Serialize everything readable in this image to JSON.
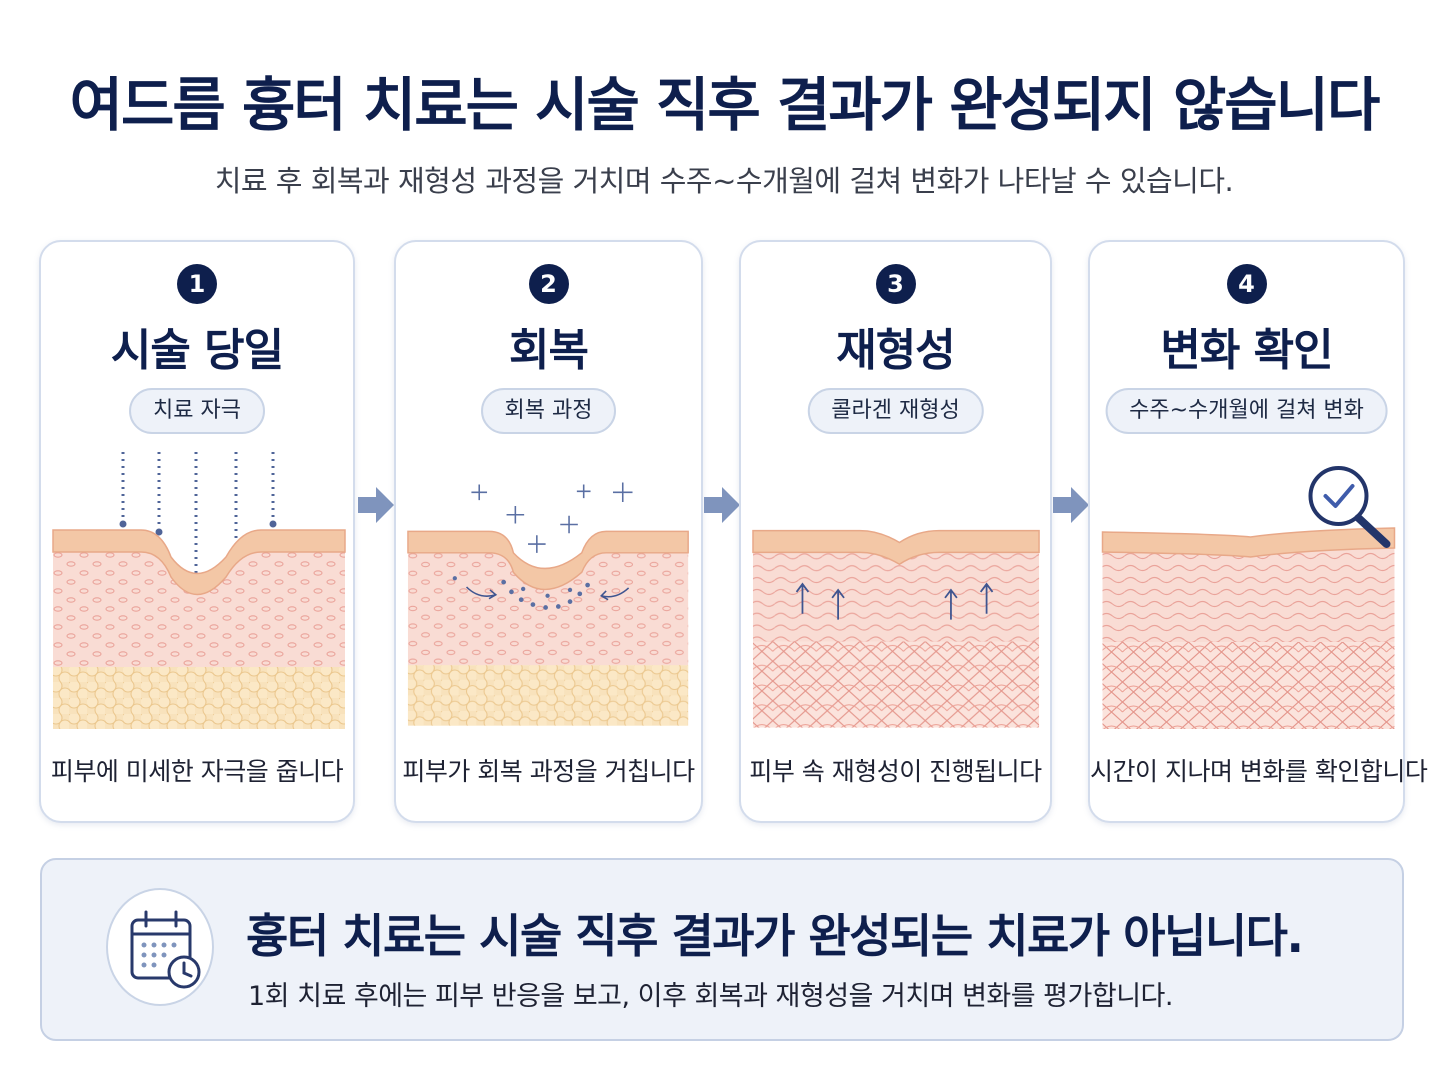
{
  "header": {
    "title": "여드름 흉터 치료는 시술 직후 결과가 완성되지 않습니다",
    "subtitle": "치료 후 회복과 재형성 과정을 거치며 수주~수개월에 걸쳐 변화가 나타날 수 있습니다."
  },
  "steps": [
    {
      "number": "1",
      "title": "시술 당일",
      "tag": "치료 자극",
      "description": "피부에 미세한 자극을 줍니다"
    },
    {
      "number": "2",
      "title": "회복",
      "tag": "회복 과정",
      "description": "피부가 회복 과정을 거칩니다"
    },
    {
      "number": "3",
      "title": "재형성",
      "tag": "콜라겐 재형성",
      "description": "피부 속 재형성이 진행됩니다"
    },
    {
      "number": "4",
      "title": "변화 확인",
      "tag": "수주~수개월에 걸쳐 변화",
      "description": "시간이 지나며 변화를 확인합니다"
    }
  ],
  "summary": {
    "title": "흉터 치료는 시술 직후 결과가 완성되는 치료가 아닙니다.",
    "text": "1회 치료 후에는 피부 반응을 보고, 이후 회복과 재형성을 거치며 변화를 평가합니다."
  },
  "icons": [
    "calendar-clock-icon",
    "arrow-right-icon",
    "magnifier-check-icon",
    "sparkle-icon",
    "up-arrow-icon"
  ],
  "colors": {
    "navy": "#0e1f4d",
    "card_border": "#d3dcec",
    "pill_bg": "#eef2f9",
    "skin_top": "#f3c7a6",
    "skin_mid": "#f9dcd4",
    "fat": "#f8e2bc",
    "arrow": "#7f94bd"
  }
}
